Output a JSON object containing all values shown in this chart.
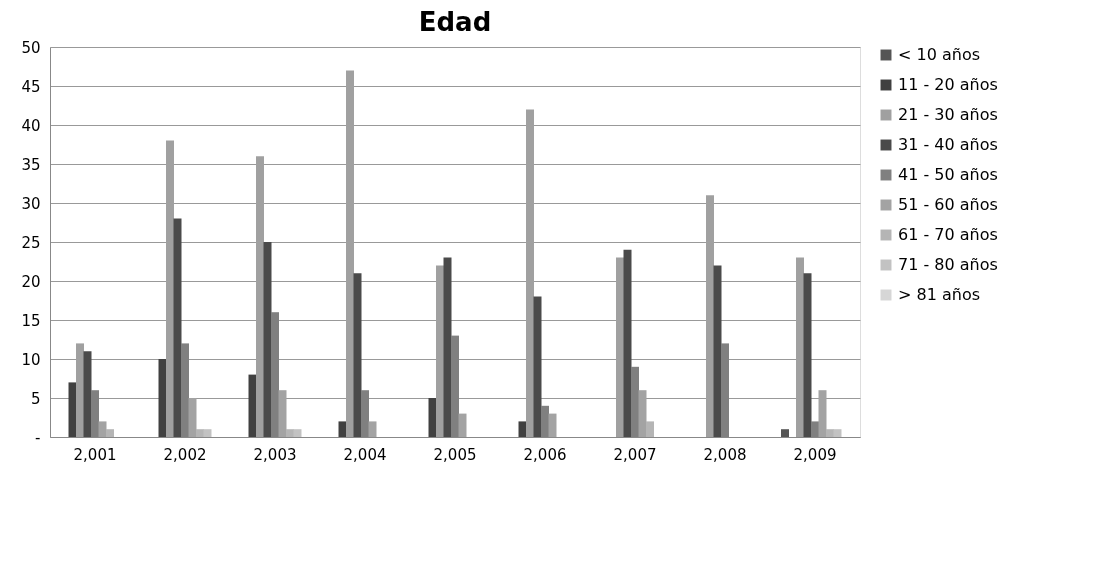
{
  "chart_data": {
    "type": "bar",
    "title": "Edad",
    "categories": [
      "2,001",
      "2,002",
      "2,003",
      "2,004",
      "2,005",
      "2,006",
      "2,007",
      "2,008",
      "2,009"
    ],
    "series": [
      {
        "name": "< 10 años",
        "color": "#555555",
        "values": [
          0,
          0,
          0,
          0,
          0,
          0,
          0,
          0,
          1
        ]
      },
      {
        "name": "11  - 20 años",
        "color": "#404040",
        "values": [
          7,
          10,
          8,
          2,
          5,
          2,
          0,
          0,
          0
        ]
      },
      {
        "name": "21  - 30 años",
        "color": "#a0a0a0",
        "values": [
          12,
          38,
          36,
          47,
          22,
          42,
          23,
          31,
          23
        ]
      },
      {
        "name": "31  - 40 años",
        "color": "#4a4a4a",
        "values": [
          11,
          28,
          25,
          21,
          23,
          18,
          24,
          22,
          21
        ]
      },
      {
        "name": "41  - 50 años",
        "color": "#808080",
        "values": [
          6,
          12,
          16,
          6,
          13,
          4,
          9,
          12,
          2
        ]
      },
      {
        "name": "51  - 60 años",
        "color": "#a3a3a3",
        "values": [
          2,
          5,
          6,
          2,
          3,
          3,
          6,
          0,
          6
        ]
      },
      {
        "name": "61  - 70 años",
        "color": "#b5b5b5",
        "values": [
          1,
          1,
          1,
          0,
          0,
          0,
          2,
          0,
          1
        ]
      },
      {
        "name": "71  - 80 años",
        "color": "#c2c2c2",
        "values": [
          0,
          1,
          1,
          0,
          0,
          0,
          0,
          0,
          1
        ]
      },
      {
        "name": "> 81 años",
        "color": "#d6d6d6",
        "values": [
          0,
          0,
          0,
          0,
          0,
          0,
          0,
          0,
          0
        ]
      }
    ],
    "ylim": [
      0,
      50
    ],
    "yticks": [
      {
        "value": 0,
        "label": "-"
      },
      5,
      10,
      15,
      20,
      25,
      30,
      35,
      40,
      45,
      50
    ],
    "grid": "y",
    "legend": "right"
  }
}
